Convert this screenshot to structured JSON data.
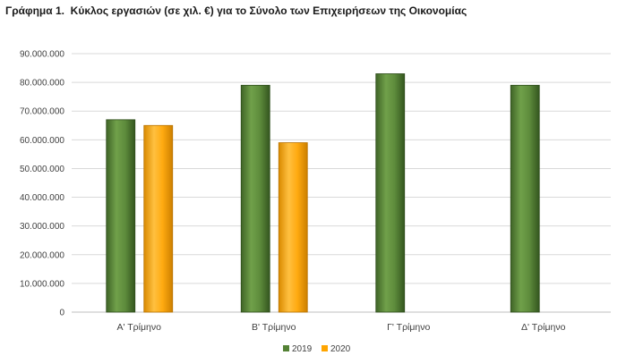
{
  "chart_data": {
    "type": "bar",
    "title_lead": "Γράφημα 1.",
    "title": "Κύκλος εργασιών (σε χιλ. €) για το Σύνολο των Επιχειρήσεων της Οικονομίας",
    "categories": [
      "Α' Τρίμηνο",
      "Β' Τρίμηνο",
      "Γ' Τρίμηνο",
      "Δ' Τρίμηνο"
    ],
    "series": [
      {
        "name": "2019",
        "values": [
          67000000,
          79000000,
          83000000,
          79000000
        ],
        "color": "#548235"
      },
      {
        "name": "2020",
        "values": [
          65000000,
          59000000,
          null,
          null
        ],
        "color": "#ffa500"
      }
    ],
    "yticks": [
      "0",
      "10.000.000",
      "20.000.000",
      "30.000.000",
      "40.000.000",
      "50.000.000",
      "60.000.000",
      "70.000.000",
      "80.000.000",
      "90.000.000"
    ],
    "ylim": [
      0,
      90000000
    ],
    "grid": true,
    "legend": "bottom"
  }
}
